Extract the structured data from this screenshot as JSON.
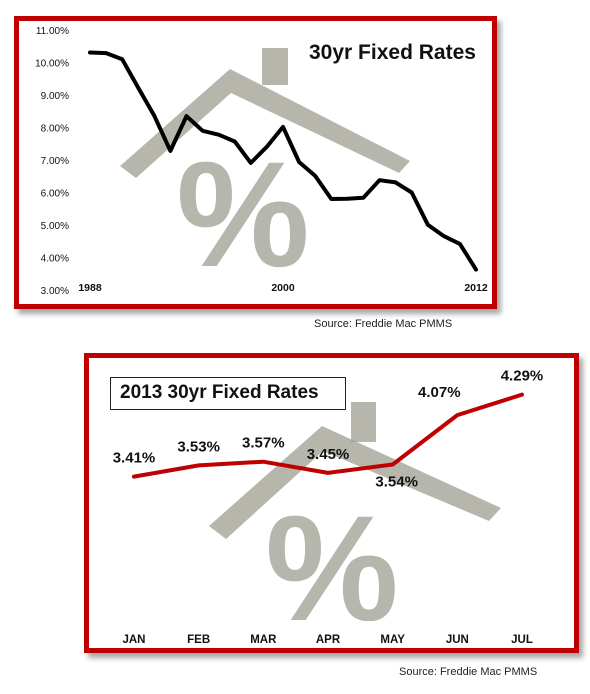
{
  "chart_data": [
    {
      "type": "line",
      "title": "30yr Fixed Rates",
      "x_tick_labels": [
        "1988",
        "2000",
        "2012"
      ],
      "y_tick_labels": [
        "3.00%",
        "4.00%",
        "5.00%",
        "6.00%",
        "7.00%",
        "8.00%",
        "9.00%",
        "10.00%",
        "11.00%"
      ],
      "ylim": [
        3,
        11
      ],
      "grid": false,
      "line_color": "#000000",
      "series": [
        {
          "x": [
            1988,
            1989,
            1990,
            1991,
            1992,
            1993,
            1994,
            1995,
            1996,
            1997,
            1998,
            1999,
            2000,
            2001,
            2002,
            2003,
            2004,
            2005,
            2006,
            2007,
            2008,
            2009,
            2010,
            2011,
            2012
          ],
          "values": [
            10.34,
            10.32,
            10.13,
            9.25,
            8.39,
            7.31,
            8.38,
            7.93,
            7.81,
            7.6,
            6.94,
            7.44,
            8.05,
            6.97,
            6.54,
            5.83,
            5.84,
            5.87,
            6.41,
            6.34,
            6.03,
            5.04,
            4.69,
            4.45,
            3.66
          ]
        }
      ],
      "source": "Source: Freddie Mac PMMS"
    },
    {
      "type": "line",
      "title": "2013 30yr Fixed Rates",
      "categories": [
        "JAN",
        "FEB",
        "MAR",
        "APR",
        "MAY",
        "JUN",
        "JUL"
      ],
      "ylim": [
        2.0,
        4.5
      ],
      "grid": false,
      "line_color": "#c00000",
      "series": [
        {
          "values": [
            3.41,
            3.53,
            3.57,
            3.45,
            3.54,
            4.07,
            4.29
          ],
          "data_labels": [
            "3.41%",
            "3.53%",
            "3.57%",
            "3.45%",
            "3.54%",
            "4.07%",
            "4.29%"
          ]
        }
      ],
      "source": "Source: Freddie Mac PMMS"
    }
  ],
  "background_icon": "house-percent-icon",
  "frame_color": "#c00000"
}
